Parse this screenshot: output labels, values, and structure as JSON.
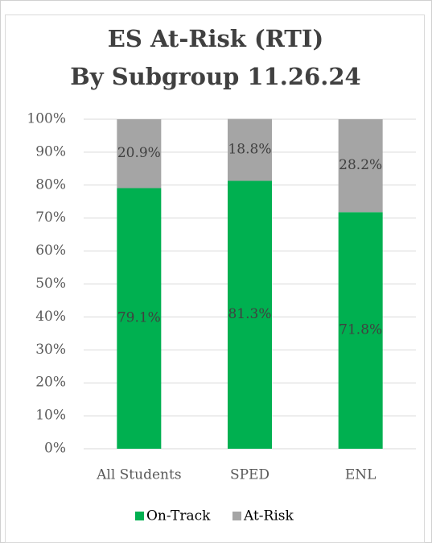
{
  "chart_data": {
    "type": "stacked_bar",
    "title": [
      "ES At-Risk (RTI)",
      "By Subgroup 11.26.24"
    ],
    "categories": [
      "All Students",
      "SPED",
      "ENL"
    ],
    "series": [
      {
        "name": "On-Track",
        "color": "#00b050",
        "values": [
          79.1,
          81.3,
          71.8
        ],
        "value_labels": [
          "79.1%",
          "81.3%",
          "71.8%"
        ]
      },
      {
        "name": "At-Risk",
        "color": "#a5a5a5",
        "values": [
          20.9,
          18.8,
          28.2
        ],
        "value_labels": [
          "20.9%",
          "18.8%",
          "28.2%"
        ]
      }
    ],
    "ylim": [
      0,
      100
    ],
    "yticks": [
      {
        "value": 0,
        "label": "0%"
      },
      {
        "value": 10,
        "label": "10%"
      },
      {
        "value": 20,
        "label": "20%"
      },
      {
        "value": 30,
        "label": "30%"
      },
      {
        "value": 40,
        "label": "40%"
      },
      {
        "value": 50,
        "label": "50%"
      },
      {
        "value": 60,
        "label": "60%"
      },
      {
        "value": 70,
        "label": "70%"
      },
      {
        "value": 80,
        "label": "80%"
      },
      {
        "value": 90,
        "label": "90%"
      },
      {
        "value": 100,
        "label": "100%"
      }
    ],
    "grid": true,
    "legend": "bottom"
  }
}
